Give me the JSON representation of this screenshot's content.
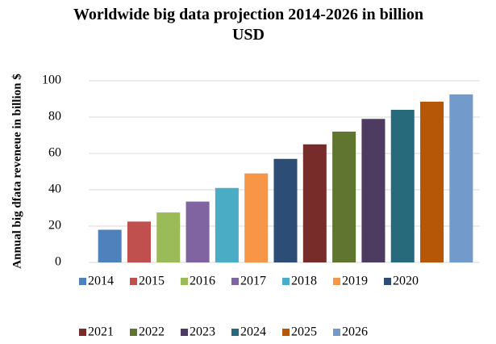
{
  "chart_data": {
    "type": "bar",
    "title": "Worldwide big data projection 2014-2026 in billion USD",
    "y_label": "Annual big dfata reveneue in billion  $",
    "categories": [
      "2014",
      "2015",
      "2016",
      "2017",
      "2018",
      "2019",
      "2020",
      "2021",
      "2022",
      "2023",
      "2024",
      "2025",
      "2026"
    ],
    "values": [
      18,
      22.5,
      27.5,
      33.5,
      41,
      49,
      57,
      65,
      72,
      79,
      84,
      88.5,
      92.5
    ],
    "colors": [
      "#4f81bd",
      "#c0504d",
      "#9bbb59",
      "#8064a2",
      "#4bacc6",
      "#f79646",
      "#2c4d75",
      "#772c2a",
      "#5f7530",
      "#4d3b62",
      "#276a7c",
      "#b65708",
      "#729aca"
    ],
    "ylim": [
      0,
      100
    ],
    "yticks": [
      0,
      20,
      40,
      60,
      80,
      100
    ],
    "grid": true,
    "legend": "bottom"
  }
}
